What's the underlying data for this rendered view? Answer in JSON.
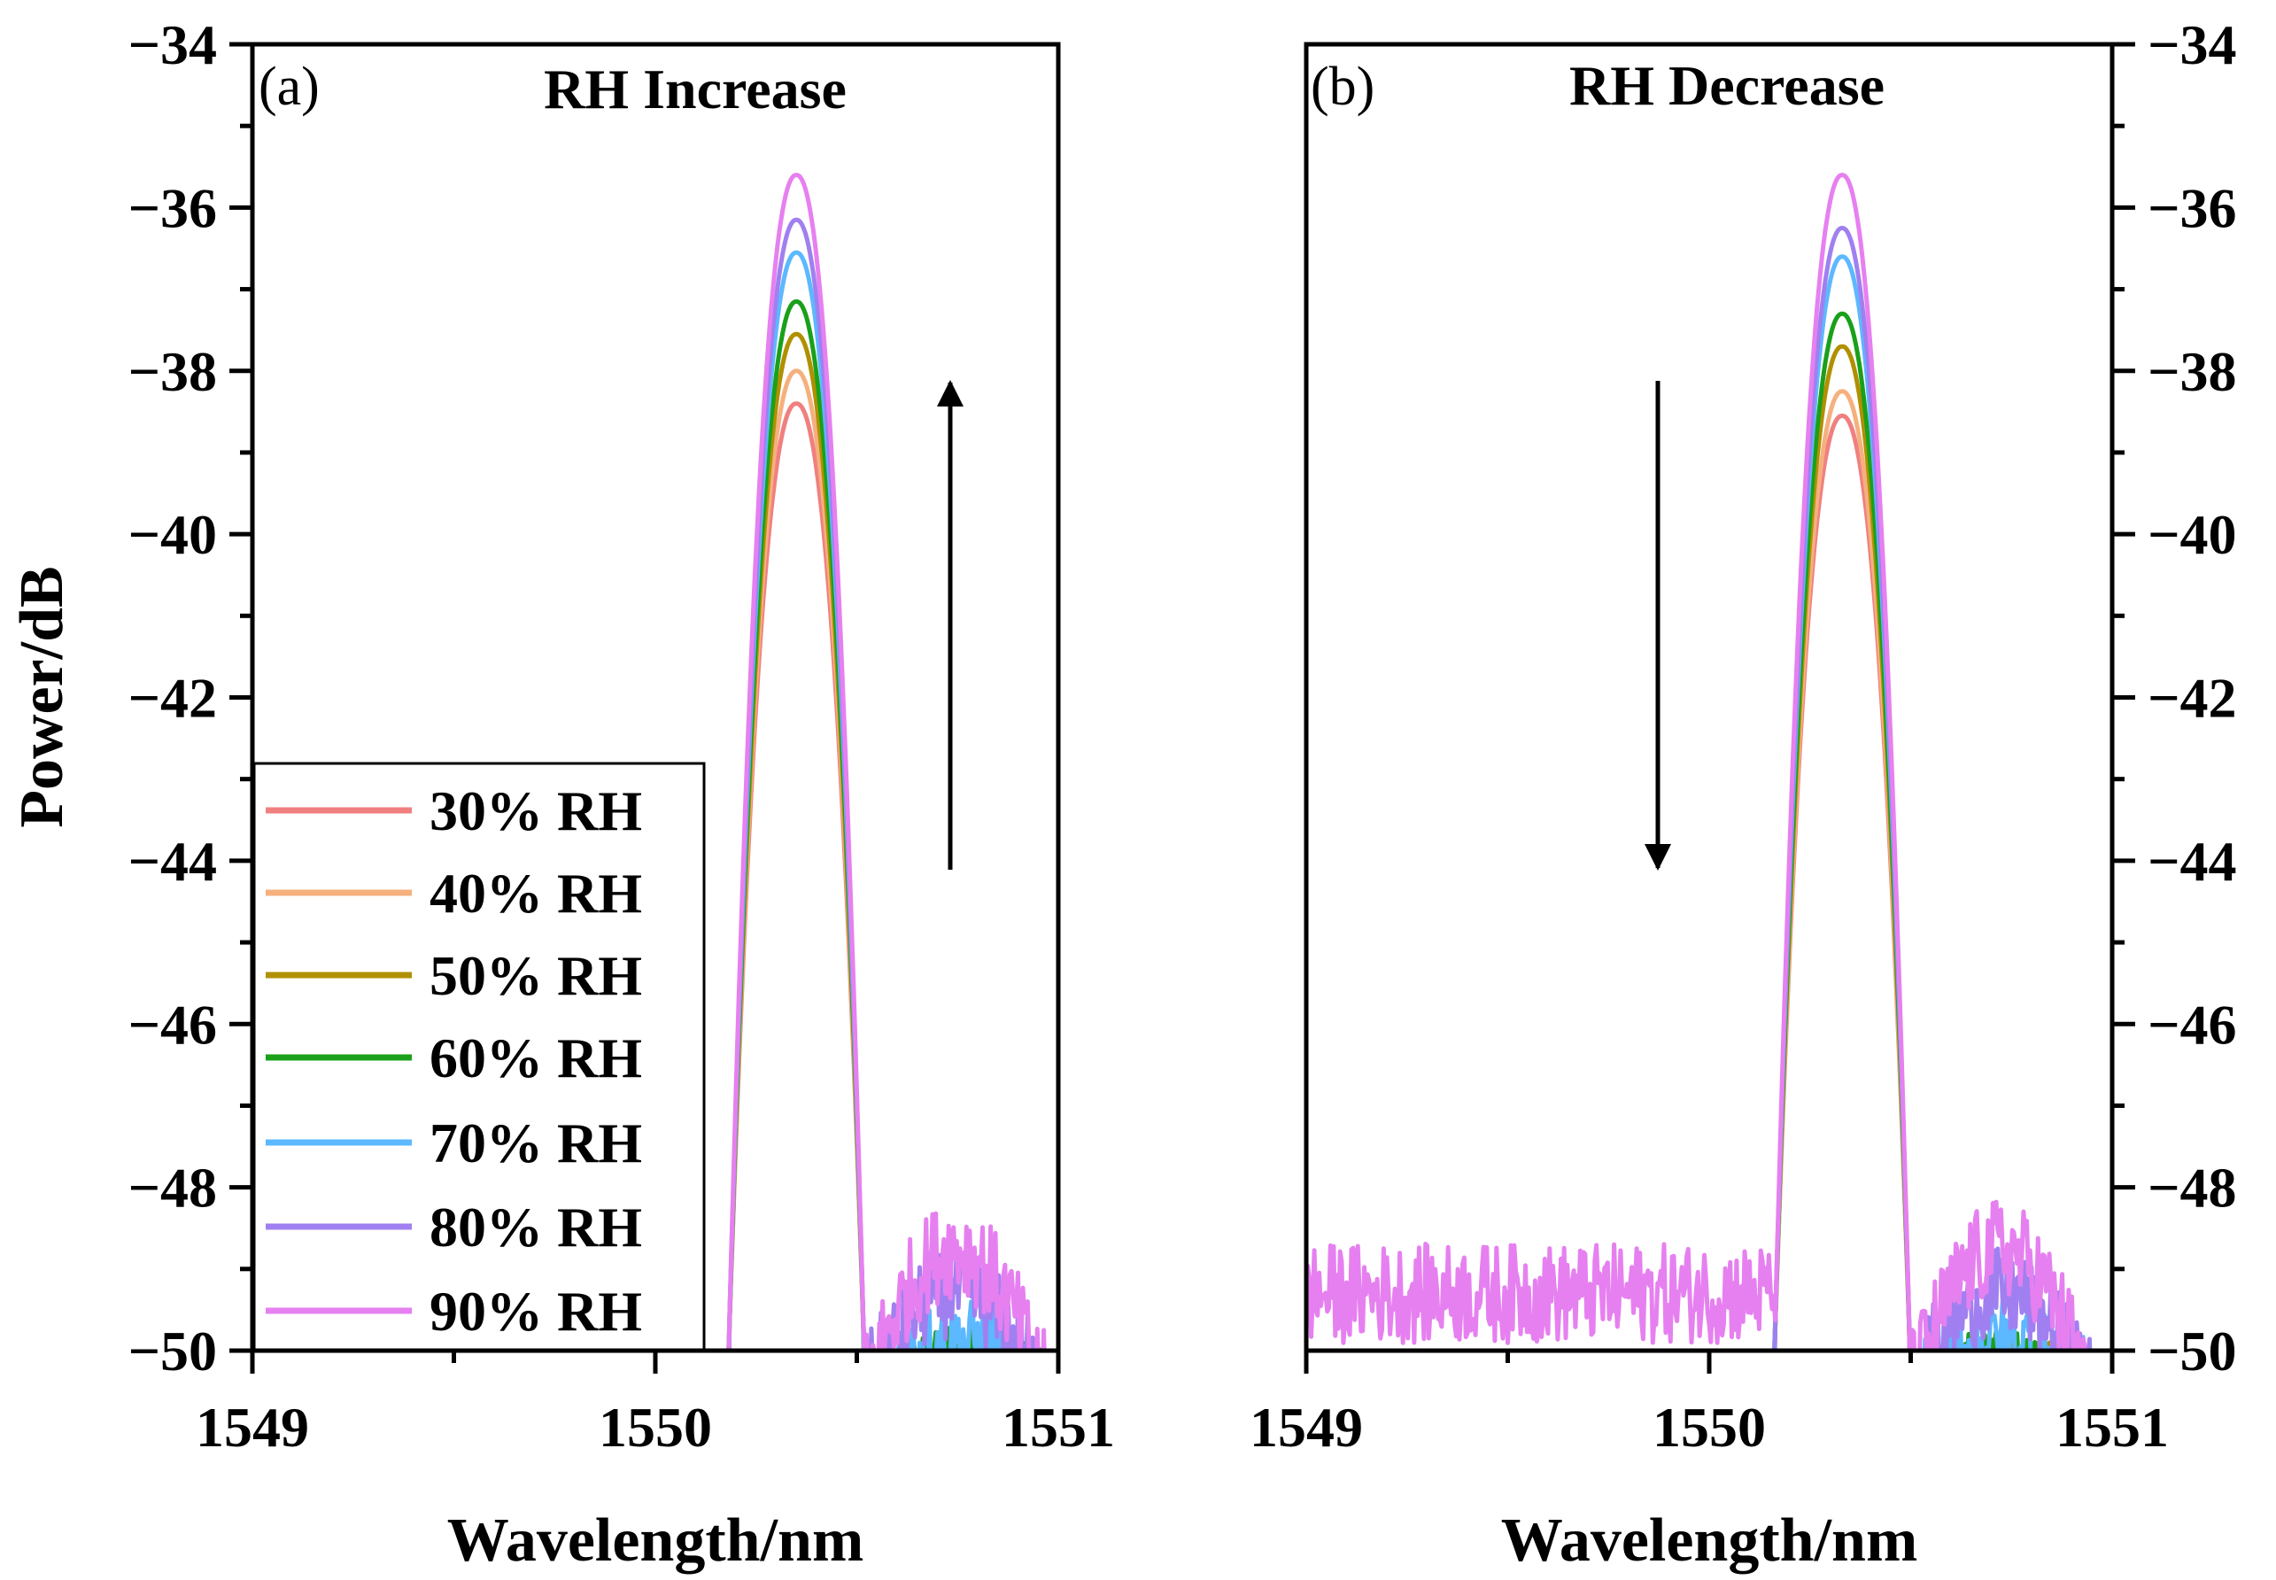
{
  "chart_data": [
    {
      "type": "line",
      "panel_tag": "(a)",
      "title": "RH Increase",
      "xlabel": "Wavelength/nm",
      "ylabel": "Power/dB",
      "xlim": [
        1549,
        1551
      ],
      "ylim": [
        -50,
        -34
      ],
      "xticks": [
        "1549",
        "1550",
        "1551"
      ],
      "yticks": [
        "−34",
        "−36",
        "−38",
        "−40",
        "−42",
        "−44",
        "−46",
        "−48",
        "−50"
      ],
      "yaxis_side": "left",
      "legend_position": "bottom-left",
      "trend_arrow": "up",
      "center_wavelength": 1550.35,
      "series": [
        {
          "name": "30% RH",
          "color": "#f08080",
          "peak": -38.4
        },
        {
          "name": "40% RH",
          "color": "#f5b07e",
          "peak": -38.0
        },
        {
          "name": "50% RH",
          "color": "#b09000",
          "peak": -37.55
        },
        {
          "name": "60% RH",
          "color": "#1aa01a",
          "peak": -37.15
        },
        {
          "name": "70% RH",
          "color": "#5cb8ff",
          "peak": -36.55
        },
        {
          "name": "80% RH",
          "color": "#a080f0",
          "peak": -36.15
        },
        {
          "name": "90% RH",
          "color": "#e680f0",
          "peak": -35.6
        }
      ]
    },
    {
      "type": "line",
      "panel_tag": "(b)",
      "title": "RH Decrease",
      "xlabel": "Wavelength/nm",
      "ylabel": "",
      "xlim": [
        1549,
        1551
      ],
      "ylim": [
        -50,
        -34
      ],
      "xticks": [
        "1549",
        "1550",
        "1551"
      ],
      "yticks": [
        "−34",
        "−36",
        "−38",
        "−40",
        "−42",
        "−44",
        "−46",
        "−48",
        "−50"
      ],
      "yaxis_side": "right",
      "trend_arrow": "down",
      "center_wavelength": 1550.33,
      "series": [
        {
          "name": "30% RH",
          "color": "#f08080",
          "peak": -38.55
        },
        {
          "name": "40% RH",
          "color": "#f5b07e",
          "peak": -38.25
        },
        {
          "name": "50% RH",
          "color": "#b09000",
          "peak": -37.7
        },
        {
          "name": "60% RH",
          "color": "#1aa01a",
          "peak": -37.3
        },
        {
          "name": "70% RH",
          "color": "#5cb8ff",
          "peak": -36.6
        },
        {
          "name": "80% RH",
          "color": "#a080f0",
          "peak": -36.25
        },
        {
          "name": "90% RH",
          "color": "#e680f0",
          "peak": -35.6
        }
      ]
    }
  ]
}
